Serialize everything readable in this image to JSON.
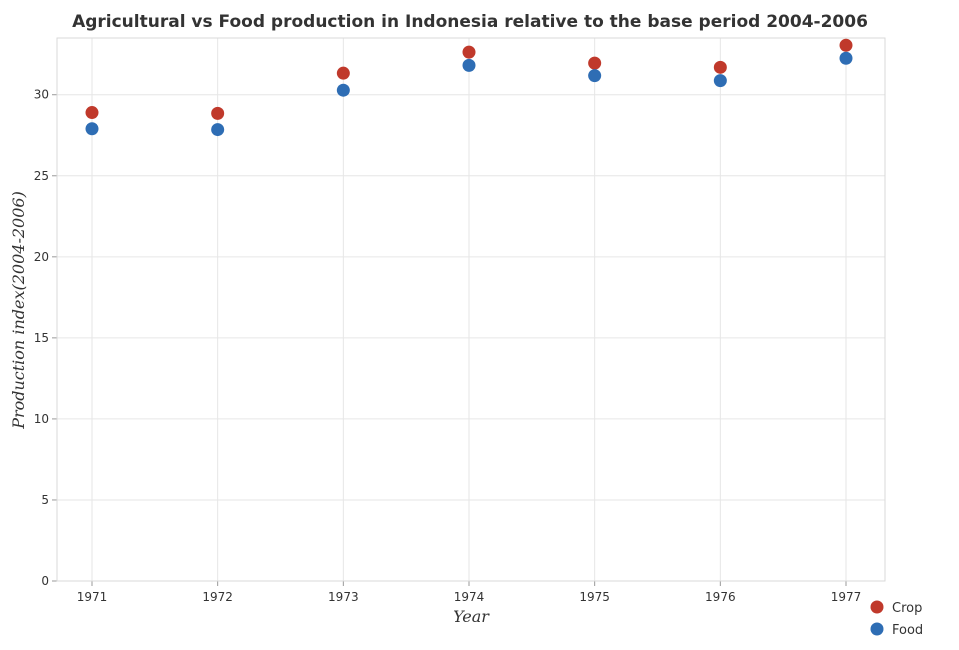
{
  "chart_data": {
    "type": "scatter",
    "title": "Agricultural vs Food production in Indonesia relative to the base period 2004-2006",
    "xlabel": "Year",
    "ylabel": "Production index(2004-2006)",
    "categories": [
      "1971",
      "1972",
      "1973",
      "1974",
      "1975",
      "1976",
      "1977"
    ],
    "ylim": [
      0,
      33.5
    ],
    "yticks": [
      0,
      5,
      10,
      15,
      20,
      25,
      30
    ],
    "ytick_labels": [
      "0",
      "5",
      "10",
      "15",
      "20",
      "25",
      "30"
    ],
    "grid": true,
    "legend_position": "bottom-right",
    "series": [
      {
        "name": "Crop",
        "color": "#c0392b",
        "values": [
          28.9,
          28.85,
          31.33,
          32.63,
          31.95,
          31.69,
          33.05
        ]
      },
      {
        "name": "Food",
        "color": "#2e6db4",
        "values": [
          27.9,
          27.85,
          30.28,
          31.81,
          31.18,
          30.87,
          32.25
        ]
      }
    ]
  }
}
